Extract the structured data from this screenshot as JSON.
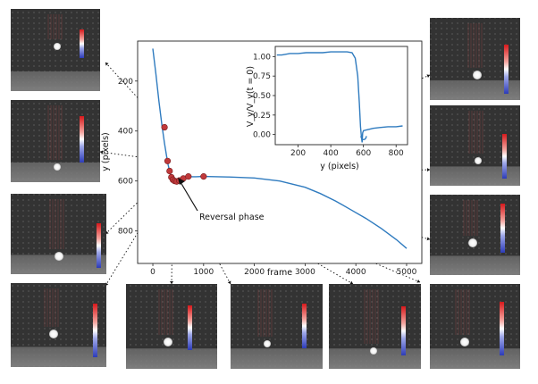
{
  "chart_data": [
    {
      "type": "line",
      "xlabel": "frame",
      "ylabel": "y (pixels)",
      "xlim": [
        -300,
        5300
      ],
      "ylim": [
        930,
        40
      ],
      "y_inverted": true,
      "xticks": [
        "0",
        "1000",
        "2000",
        "3000",
        "4000",
        "5000"
      ],
      "yticks": [
        "200",
        "400",
        "600",
        "800"
      ],
      "series": [
        {
          "x": [
            0,
            60,
            120,
            180,
            230,
            270,
            300,
            330,
            360,
            400,
            450,
            500,
            560,
            620,
            680,
            750,
            850,
            1000,
            1500,
            2000,
            2500,
            3000,
            3300,
            3600,
            3900,
            4200,
            4500,
            4800,
            5000
          ],
          "y": [
            70,
            170,
            280,
            380,
            450,
            500,
            535,
            560,
            580,
            592,
            600,
            602,
            598,
            590,
            585,
            583,
            583,
            582,
            584,
            588,
            600,
            625,
            650,
            680,
            715,
            750,
            790,
            835,
            870
          ]
        }
      ],
      "markers": {
        "x": [
          230,
          290,
          330,
          365,
          395,
          430,
          470,
          520,
          600,
          700,
          1000
        ],
        "y": [
          385,
          520,
          560,
          585,
          595,
          600,
          602,
          598,
          590,
          582,
          582
        ]
      },
      "annotations": [
        "Reversal phase"
      ],
      "grid": false
    },
    {
      "type": "line",
      "xlabel": "y (pixels)",
      "ylabel": "V_y/V_y(t = 0)",
      "xlim": [
        60,
        870
      ],
      "ylim": [
        -0.13,
        1.13
      ],
      "xticks": [
        "200",
        "400",
        "600",
        "800"
      ],
      "yticks": [
        "0.00",
        "0.25",
        "0.50",
        "0.75",
        "1.00"
      ],
      "series": [
        {
          "x": [
            70,
            100,
            150,
            200,
            250,
            300,
            350,
            400,
            450,
            500,
            530,
            550,
            565,
            575,
            582,
            588,
            592,
            595,
            600,
            620,
            660,
            700,
            750,
            800,
            840
          ],
          "y": [
            1.02,
            1.02,
            1.04,
            1.04,
            1.05,
            1.05,
            1.05,
            1.06,
            1.06,
            1.06,
            1.05,
            0.98,
            0.75,
            0.4,
            0.1,
            -0.04,
            -0.1,
            0.02,
            0.05,
            0.06,
            0.08,
            0.09,
            0.1,
            0.1,
            0.11
          ]
        }
      ],
      "grid": false
    }
  ],
  "labels": {
    "reversal": "Reversal phase",
    "main_xlabel": "frame",
    "main_ylabel": "y (pixels)",
    "inset_xlabel": "y (pixels)",
    "inset_ylabel": "V_y/V_y(t = 0)"
  },
  "colors": {
    "line": "#2f7bbf",
    "marker": "#c0393b",
    "marker_edge": "#7a1e20",
    "thumb_bg": "#3a3a3a",
    "colorbar_top": "#d7191c",
    "colorbar_bottom": "#2c3bb8"
  }
}
